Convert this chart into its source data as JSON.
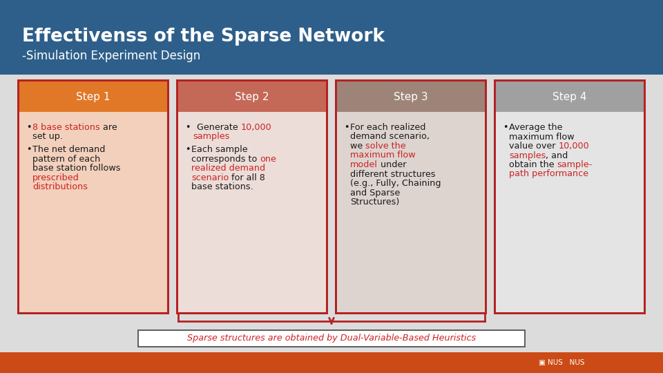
{
  "title_main": "Effectivenss of the Sparse Network",
  "title_sub": "-Simulation Experiment Design",
  "header_bg": "#2e5f8a",
  "footer_bg": "#cc4a15",
  "bg_color": "#dcdcdc",
  "steps": [
    "Step 1",
    "Step 2",
    "Step 3",
    "Step 4"
  ],
  "header_colors": [
    "#e07828",
    "#c46858",
    "#9e8478",
    "#a0a0a0"
  ],
  "box_bg_colors": [
    "#f2d0bc",
    "#ecddd8",
    "#ddd4d0",
    "#e4e4e4"
  ],
  "border_color": "#b52222",
  "red_color": "#cc2222",
  "dark_color": "#1a1a1a",
  "footer_text": "Sparse structures are obtained by Dual-Variable-Based Heuristics",
  "footer_text_color": "#cc2222"
}
